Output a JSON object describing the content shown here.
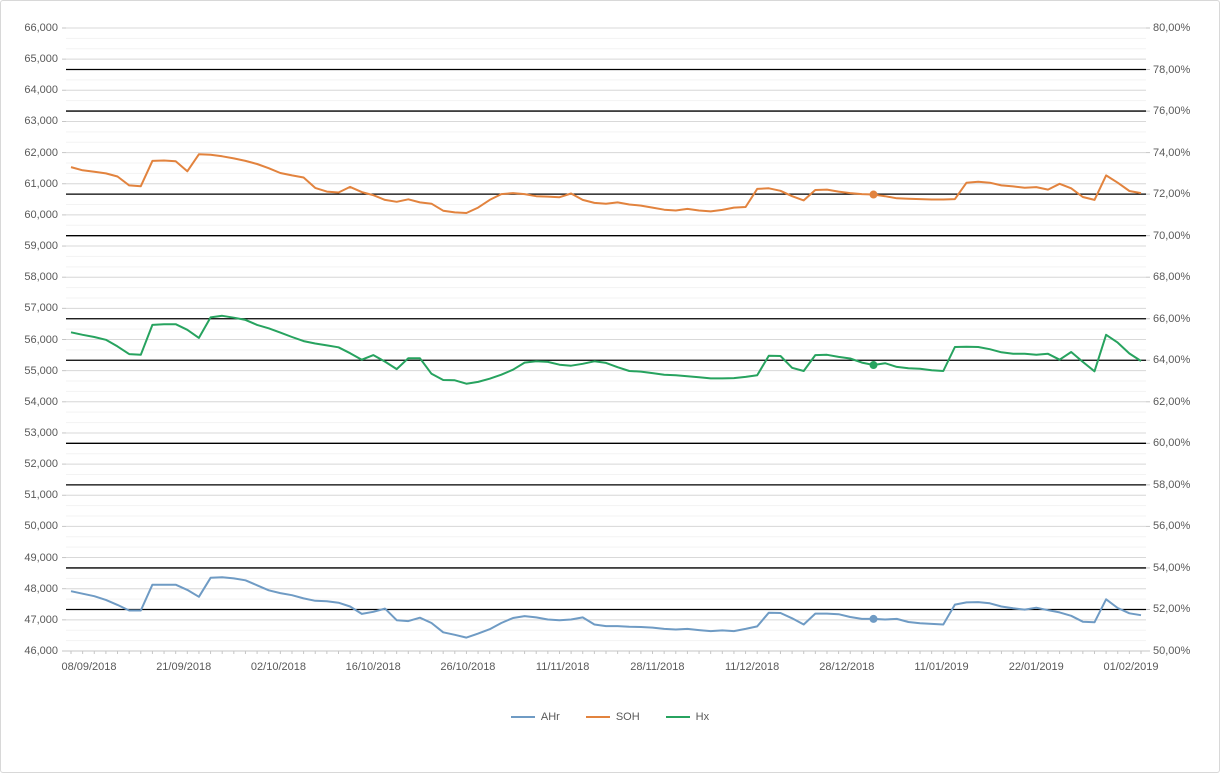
{
  "chart_data": {
    "type": "line",
    "title": "",
    "x_labels": [
      "08/09/2018",
      "21/09/2018",
      "02/10/2018",
      "16/10/2018",
      "26/10/2018",
      "11/11/2018",
      "28/11/2018",
      "11/12/2018",
      "28/12/2018",
      "11/01/2019",
      "22/01/2019",
      "01/02/2019"
    ],
    "x_label_interval": 8,
    "left_axis": {
      "min": 46000,
      "max": 66000,
      "step": 1000,
      "format": "thousands-comma"
    },
    "right_axis": {
      "min": 50,
      "max": 80,
      "step": 2,
      "minor_step": 0.5,
      "format": "percent-comma-2dp"
    },
    "threshold_lines_pct": [
      78,
      76,
      72,
      70,
      66,
      64,
      60,
      58,
      54,
      52
    ],
    "threshold_color": "#000000",
    "grid": {
      "major_color": "#d9d9d9",
      "minor_color": "#f3f3f3",
      "axis_color": "#c6c6c6"
    },
    "legend_position": "bottom",
    "marker_index": 69,
    "series": [
      {
        "name": "AHr",
        "axis": "left",
        "color": "#6f9bc4",
        "values": [
          47920,
          47840,
          47760,
          47640,
          47480,
          47300,
          47300,
          48130,
          48130,
          48130,
          47960,
          47740,
          48350,
          48370,
          48330,
          48270,
          48110,
          47950,
          47860,
          47790,
          47690,
          47610,
          47600,
          47550,
          47430,
          47190,
          47260,
          47360,
          46990,
          46960,
          47070,
          46900,
          46600,
          46520,
          46430,
          46560,
          46700,
          46900,
          47060,
          47120,
          47080,
          47010,
          46990,
          47010,
          47080,
          46850,
          46800,
          46800,
          46780,
          46770,
          46750,
          46710,
          46690,
          46710,
          46670,
          46640,
          46660,
          46640,
          46710,
          46790,
          47230,
          47220,
          47050,
          46850,
          47200,
          47200,
          47180,
          47090,
          47030,
          47030,
          47010,
          47030,
          46930,
          46890,
          46870,
          46850,
          47490,
          47560,
          47570,
          47530,
          47430,
          47370,
          47330,
          47390,
          47310,
          47240,
          47130,
          46940,
          46920,
          47660,
          47380,
          47210,
          47150
        ]
      },
      {
        "name": "SOH",
        "axis": "right",
        "color": "#e2833e",
        "values": [
          73.3,
          73.15,
          73.08,
          73.0,
          72.85,
          72.42,
          72.38,
          73.6,
          73.62,
          73.58,
          73.1,
          73.92,
          73.9,
          73.82,
          73.72,
          73.6,
          73.45,
          73.25,
          73.02,
          72.9,
          72.8,
          72.3,
          72.12,
          72.08,
          72.35,
          72.1,
          71.95,
          71.72,
          71.63,
          71.75,
          71.6,
          71.54,
          71.2,
          71.12,
          71.09,
          71.35,
          71.72,
          72.0,
          72.05,
          72.0,
          71.9,
          71.88,
          71.85,
          72.03,
          71.72,
          71.58,
          71.54,
          71.6,
          71.5,
          71.45,
          71.35,
          71.25,
          71.21,
          71.29,
          71.21,
          71.17,
          71.24,
          71.35,
          71.38,
          72.25,
          72.28,
          72.16,
          71.9,
          71.7,
          72.2,
          72.22,
          72.12,
          72.05,
          72.0,
          71.98,
          71.9,
          71.8,
          71.78,
          71.76,
          71.74,
          71.74,
          71.76,
          72.55,
          72.6,
          72.55,
          72.42,
          72.37,
          72.31,
          72.34,
          72.22,
          72.5,
          72.28,
          71.86,
          71.72,
          72.9,
          72.55,
          72.15,
          72.05
        ]
      },
      {
        "name": "Hx",
        "axis": "left",
        "color": "#27a35f",
        "values": [
          56230,
          56150,
          56080,
          55990,
          55780,
          55530,
          55510,
          56470,
          56490,
          56490,
          56310,
          56050,
          56710,
          56760,
          56700,
          56630,
          56470,
          56360,
          56220,
          56080,
          55950,
          55870,
          55810,
          55750,
          55560,
          55350,
          55500,
          55290,
          55050,
          55400,
          55400,
          54900,
          54700,
          54690,
          54580,
          54640,
          54740,
          54870,
          55030,
          55260,
          55300,
          55280,
          55190,
          55160,
          55220,
          55300,
          55250,
          55110,
          54990,
          54970,
          54920,
          54870,
          54850,
          54820,
          54790,
          54750,
          54750,
          54760,
          54800,
          54850,
          55480,
          55470,
          55090,
          54990,
          55500,
          55510,
          55440,
          55390,
          55260,
          55180,
          55240,
          55120,
          55080,
          55060,
          55010,
          54990,
          55760,
          55770,
          55760,
          55690,
          55590,
          55540,
          55540,
          55510,
          55540,
          55350,
          55600,
          55280,
          54980,
          56150,
          55900,
          55550,
          55310
        ]
      }
    ]
  }
}
